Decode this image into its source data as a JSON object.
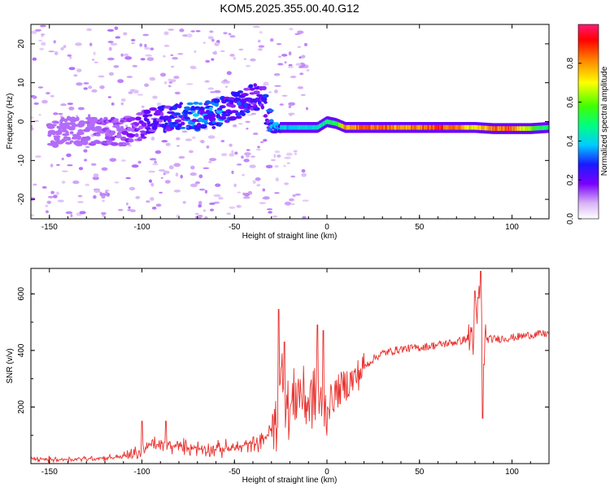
{
  "title": "KOM5.2025.355.00.40.G12",
  "colors": {
    "snr_line": "#e8322e",
    "axis": "#000000",
    "background": "#ffffff"
  },
  "chart_data": [
    {
      "type": "heatmap",
      "name": "spectrogram",
      "xlabel": "Height of straight line (km)",
      "ylabel": "Frequency (Hz)",
      "xlim": [
        -160,
        120
      ],
      "ylim": [
        -25,
        25
      ],
      "xticks": [
        -150,
        -100,
        -50,
        0,
        50,
        100
      ],
      "yticks": [
        -20,
        -10,
        0,
        10,
        20
      ],
      "grid": false,
      "ridge": {
        "description_x": [
          -160,
          -140,
          -120,
          -110,
          -100,
          -90,
          -80,
          -70,
          -60,
          -50,
          -45,
          -40,
          -35,
          -30,
          -25,
          -20,
          -10,
          -5,
          0,
          5,
          10,
          20,
          30,
          40,
          50,
          60,
          70,
          80,
          90,
          100,
          110,
          120
        ],
        "freq": [
          -3,
          -2.5,
          -2.5,
          -2.5,
          -1,
          0.5,
          1.5,
          1.5,
          2,
          4,
          5,
          6,
          7,
          -1.5,
          -1.5,
          -1.5,
          -1.5,
          -1.5,
          0,
          -0.5,
          -1.5,
          -1.5,
          -1.5,
          -1.5,
          -1.5,
          -1.5,
          -1.5,
          -1.5,
          -1.8,
          -1.8,
          -1.8,
          -1.5
        ],
        "amplitude": [
          0.1,
          0.1,
          0.15,
          0.15,
          0.2,
          0.25,
          0.3,
          0.35,
          0.35,
          0.3,
          0.3,
          0.25,
          0.25,
          0.35,
          0.4,
          0.4,
          0.4,
          0.45,
          0.5,
          0.55,
          0.8,
          0.85,
          0.85,
          0.8,
          0.85,
          0.9,
          0.85,
          0.7,
          0.85,
          0.85,
          0.6,
          0.5
        ]
      }
    },
    {
      "type": "colorbar",
      "name": "colorbar",
      "label": "Normalized spectral amplitude",
      "ylim": [
        0,
        1
      ],
      "ticks": [
        "0.0",
        "0.2",
        "0.4",
        "0.6",
        "0.8"
      ],
      "tick_values": [
        0,
        0.2,
        0.4,
        0.6,
        0.8
      ]
    },
    {
      "type": "line",
      "name": "snr",
      "xlabel": "Height of straight line (km)",
      "ylabel": "SNR (v/v)",
      "xlim": [
        -160,
        120
      ],
      "ylim": [
        0,
        690
      ],
      "xticks": [
        -150,
        -100,
        -50,
        0,
        50,
        100
      ],
      "yticks": [
        200,
        400,
        600
      ],
      "grid": false,
      "series": [
        {
          "name": "SNR",
          "x": [
            -160,
            -140,
            -120,
            -110,
            -100,
            -95,
            -90,
            -80,
            -70,
            -60,
            -50,
            -40,
            -35,
            -30,
            -27,
            -25,
            -24,
            -23,
            -22,
            -20,
            -18,
            -15,
            -12,
            -10,
            -5,
            -2,
            0,
            5,
            10,
            15,
            20,
            25,
            30,
            40,
            50,
            60,
            70,
            75,
            78,
            80,
            82,
            83,
            84,
            86,
            90,
            100,
            110,
            120
          ],
          "y": [
            15,
            15,
            20,
            25,
            40,
            70,
            65,
            60,
            55,
            50,
            55,
            70,
            80,
            120,
            150,
            250,
            380,
            250,
            210,
            180,
            230,
            260,
            230,
            210,
            250,
            150,
            200,
            250,
            280,
            300,
            340,
            370,
            390,
            405,
            410,
            420,
            430,
            440,
            450,
            470,
            560,
            600,
            380,
            440,
            440,
            445,
            455,
            460
          ],
          "spikes": [
            {
              "x": -100,
              "y": 150
            },
            {
              "x": -87,
              "y": 150
            },
            {
              "x": -26,
              "y": 545
            },
            {
              "x": -23,
              "y": 430
            },
            {
              "x": -5,
              "y": 490
            },
            {
              "x": -2,
              "y": 470
            },
            {
              "x": 80,
              "y": 610
            },
            {
              "x": 83,
              "y": 680
            },
            {
              "x": 84,
              "y": 160
            }
          ]
        }
      ]
    }
  ]
}
